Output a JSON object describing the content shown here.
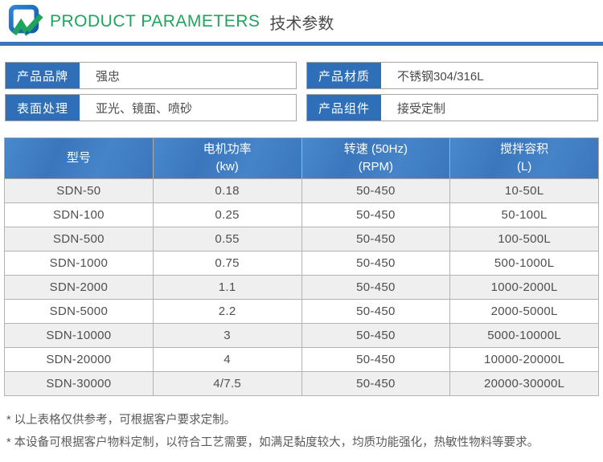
{
  "header": {
    "title_en": "PRODUCT PARAMETERS",
    "title_zh": "技术参数",
    "accent_green": "#1ea45c",
    "accent_blue": "#3d74b5",
    "label_blue": "#2e6fb7"
  },
  "info": {
    "items": [
      {
        "label": "产品品牌",
        "value": "强忠"
      },
      {
        "label": "产品材质",
        "value": "不锈钢304/316L"
      },
      {
        "label": "表面处理",
        "value": "亚光、镜面、喷砂"
      },
      {
        "label": "产品组件",
        "value": "接受定制"
      }
    ]
  },
  "table": {
    "headers": [
      {
        "line1": "型号",
        "line2": ""
      },
      {
        "line1": "电机功率",
        "line2": "(kw)"
      },
      {
        "line1": "转速 (50Hz)",
        "line2": "(RPM)"
      },
      {
        "line1": "搅拌容积",
        "line2": "(L)"
      }
    ],
    "rows": [
      [
        "SDN-50",
        "0.18",
        "50-450",
        "10-50L"
      ],
      [
        "SDN-100",
        "0.25",
        "50-450",
        "50-100L"
      ],
      [
        "SDN-500",
        "0.55",
        "50-450",
        "100-500L"
      ],
      [
        "SDN-1000",
        "0.75",
        "50-450",
        "500-1000L"
      ],
      [
        "SDN-2000",
        "1.1",
        "50-450",
        "1000-2000L"
      ],
      [
        "SDN-5000",
        "2.2",
        "50-450",
        "2000-5000L"
      ],
      [
        "SDN-10000",
        "3",
        "50-450",
        "5000-10000L"
      ],
      [
        "SDN-20000",
        "4",
        "50-450",
        "10000-20000L"
      ],
      [
        "SDN-30000",
        "4/7.5",
        "50-450",
        "20000-30000L"
      ]
    ]
  },
  "notes": [
    "* 以上表格仅供参考，可根据客户要求定制。",
    "* 本设备可根据客户物料定制，以符合工艺需要，如满足黏度较大，均质功能强化，热敏性物料等要求。"
  ]
}
